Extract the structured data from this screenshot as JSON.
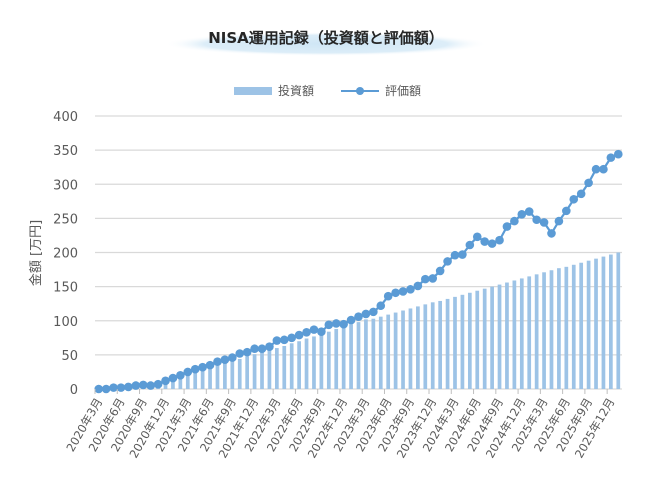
{
  "chart_data": {
    "type": "bar+line",
    "title": "NISA運用記録（投資額と評価額）",
    "ylabel": "金額 [万円]",
    "xlabel": "",
    "ylim": [
      0,
      400
    ],
    "y_ticks": [
      "0",
      "50",
      "100",
      "150",
      "200",
      "250",
      "300",
      "350",
      "400"
    ],
    "grid": true,
    "legend_position": "top",
    "label_every": 3,
    "tick_labels": [
      "2020年3月",
      "2020年6月",
      "2020年9月",
      "2020年12月",
      "2021年3月",
      "2021年6月",
      "2021年9月",
      "2021年12月",
      "2022年3月",
      "2022年6月",
      "2022年9月",
      "2022年12月",
      "2023年3月",
      "2023年6月",
      "2023年9月",
      "2023年12月",
      "2024年3月",
      "2024年6月",
      "2024年9月",
      "2024年12月",
      "2025年3月",
      "2025年6月",
      "2025年9月",
      "2025年12月"
    ],
    "series": [
      {
        "name": "投資額",
        "type": "bar",
        "color": "#9DC3E6",
        "values": [
          0,
          1,
          2,
          3,
          4,
          5,
          6,
          7,
          8,
          11,
          14,
          18,
          21,
          24,
          28,
          31,
          34,
          38,
          41,
          44,
          48,
          51,
          54,
          57,
          60,
          63,
          67,
          70,
          74,
          77,
          81,
          84,
          88,
          91,
          95,
          98,
          102,
          103,
          106,
          109,
          112,
          115,
          118,
          121,
          124,
          127,
          129,
          132,
          135,
          138,
          141,
          144,
          147,
          150,
          153,
          156,
          159,
          162,
          165,
          168,
          171,
          174,
          177,
          179,
          182,
          185,
          188,
          191,
          194,
          197,
          200
        ]
      },
      {
        "name": "評価額",
        "type": "line",
        "color": "#5B9BD5",
        "values": [
          0,
          0,
          2,
          2,
          3,
          5,
          6,
          5,
          7,
          12,
          16,
          20,
          25,
          29,
          32,
          35,
          40,
          43,
          46,
          52,
          54,
          59,
          59,
          62,
          71,
          72,
          75,
          79,
          83,
          87,
          84,
          94,
          96,
          95,
          101,
          106,
          110,
          113,
          122,
          136,
          141,
          143,
          146,
          151,
          161,
          162,
          173,
          187,
          196,
          197,
          211,
          223,
          216,
          213,
          218,
          238,
          246,
          256,
          260,
          248,
          244,
          228,
          246,
          261,
          278,
          286,
          302,
          322,
          322,
          339,
          344
        ]
      }
    ]
  }
}
